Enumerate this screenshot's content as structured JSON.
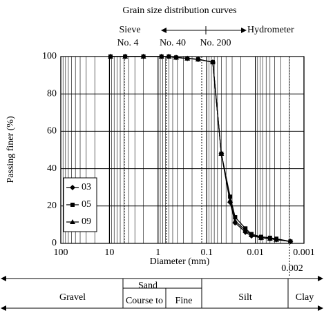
{
  "chart_data": {
    "type": "line",
    "title": "Grain size distribution curves",
    "xlabel": "Diameter (mm)",
    "ylabel": "Passing finer (%)",
    "x": [
      9.5,
      4.75,
      2,
      0.85,
      0.6,
      0.425,
      0.25,
      0.15,
      0.075,
      0.05,
      0.033,
      0.026,
      0.016,
      0.012,
      0.0076,
      0.005,
      0.0037,
      0.0019
    ],
    "series": [
      {
        "name": "03",
        "color": "#000000",
        "marker": "diamond",
        "values": [
          100,
          100,
          100,
          100,
          100,
          99.5,
          99,
          98.5,
          97,
          48,
          22,
          11,
          6,
          4,
          3,
          2.5,
          2,
          1
        ]
      },
      {
        "name": "05",
        "color": "#000000",
        "marker": "square",
        "values": [
          100,
          100,
          100,
          100,
          100,
          99.5,
          99,
          98.5,
          97,
          48,
          25,
          14,
          8,
          5,
          3.5,
          3,
          2.5,
          1
        ]
      },
      {
        "name": "09",
        "color": "#000000",
        "marker": "triangle",
        "values": [
          100,
          100,
          100,
          100,
          100,
          99.5,
          99,
          98.5,
          97,
          48,
          23,
          12,
          7,
          4.5,
          3,
          2.5,
          2,
          1
        ]
      }
    ],
    "xscale": "log",
    "xlim": [
      100,
      0.001
    ],
    "xticks": [
      100,
      10,
      1,
      0.1,
      0.01,
      0.001
    ],
    "ylim": [
      0,
      100
    ],
    "yticks": [
      0,
      20,
      40,
      60,
      80,
      100
    ],
    "grid": true,
    "annotations": {
      "sieve": "Sieve",
      "no4": "No. 4",
      "no40": "No. 40",
      "no200": "No. 200",
      "hydrometer": "Hydrometer",
      "clay_limit": "0.002"
    },
    "soil_classes": {
      "gravel": "Gravel",
      "sand": "Sand",
      "coarse": "Course to",
      "fine": "Fine",
      "silt": "Silt",
      "clay": "Clay"
    }
  }
}
